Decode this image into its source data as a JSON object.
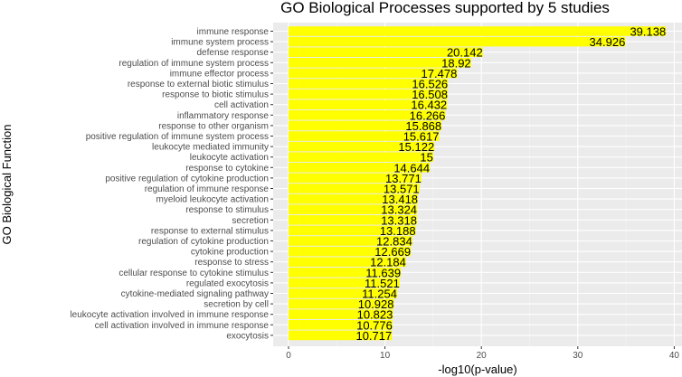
{
  "chart_data": {
    "type": "bar",
    "orientation": "horizontal",
    "title": "GO Biological Processes supported by 5 studies",
    "xlabel": "-log10(p-value)",
    "ylabel": "GO Biological Function",
    "xlim": [
      0,
      40
    ],
    "x_ticks": [
      0,
      10,
      20,
      30,
      40
    ],
    "grid": true,
    "bar_color": "#ffff00",
    "panel_background": "#ebebeb",
    "categories": [
      "immune response",
      "immune system process",
      "defense response",
      "regulation of immune system process",
      "immune effector process",
      "response to external biotic stimulus",
      "response to biotic stimulus",
      "cell activation",
      "inflammatory response",
      "response to other organism",
      "positive regulation of immune system process",
      "leukocyte mediated immunity",
      "leukocyte activation",
      "response to cytokine",
      "positive regulation of cytokine production",
      "regulation of immune response",
      "myeloid leukocyte activation",
      "response to stimulus",
      "secretion",
      "response to external stimulus",
      "regulation of cytokine production",
      "cytokine production",
      "response to stress",
      "cellular response to cytokine stimulus",
      "regulated exocytosis",
      "cytokine-mediated signaling pathway",
      "secretion by cell",
      "leukocyte activation involved in immune response",
      "cell activation involved in immune response",
      "exocytosis"
    ],
    "values": [
      39.138,
      34.926,
      20.142,
      18.92,
      17.478,
      16.526,
      16.508,
      16.432,
      16.266,
      15.868,
      15.617,
      15.122,
      15,
      14.644,
      13.771,
      13.571,
      13.418,
      13.324,
      13.318,
      13.188,
      12.834,
      12.669,
      12.184,
      11.639,
      11.521,
      11.254,
      10.928,
      10.823,
      10.776,
      10.717
    ],
    "value_labels": [
      "39.138",
      "34.926",
      "20.142",
      "18.92",
      "17.478",
      "16.526",
      "16.508",
      "16.432",
      "16.266",
      "15.868",
      "15.617",
      "15.122",
      "15",
      "14.644",
      "13.771",
      "13.571",
      "13.418",
      "13.324",
      "13.318",
      "13.188",
      "12.834",
      "12.669",
      "12.184",
      "11.639",
      "11.521",
      "11.254",
      "10.928",
      "10.823",
      "10.776",
      "10.717"
    ]
  }
}
